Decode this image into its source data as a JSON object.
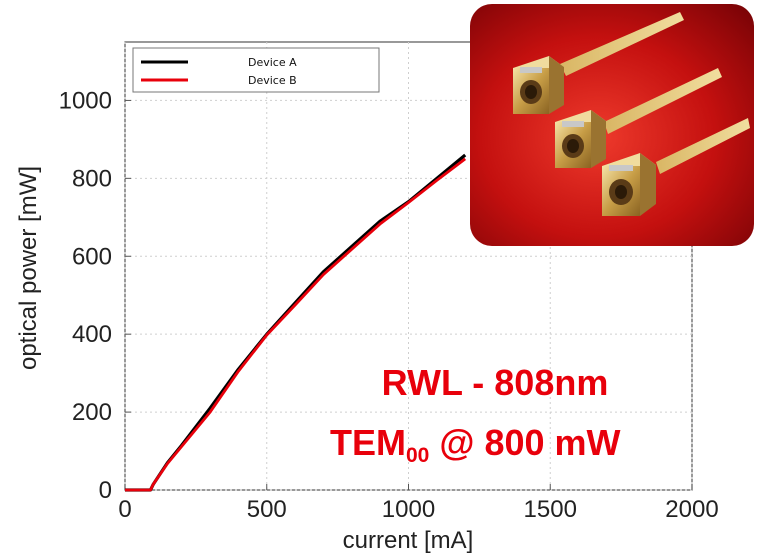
{
  "chart_data": {
    "type": "line",
    "title": "",
    "xlabel": "current [mA]",
    "ylabel": "optical power [mW]",
    "xlim": [
      0,
      2000
    ],
    "ylim": [
      0,
      1150
    ],
    "x_ticks": [
      0,
      500,
      1000,
      1500,
      2000
    ],
    "y_ticks": [
      0,
      200,
      400,
      600,
      800,
      1000
    ],
    "grid": true,
    "legend_position": "top-left",
    "series": [
      {
        "name": "Device A",
        "color": "#000000",
        "x": [
          0,
          90,
          100,
          150,
          200,
          300,
          400,
          500,
          600,
          700,
          800,
          900,
          1000,
          1100,
          1200
        ],
        "y": [
          0,
          0,
          15,
          70,
          115,
          210,
          310,
          400,
          480,
          560,
          625,
          690,
          740,
          800,
          860
        ]
      },
      {
        "name": "Device B",
        "color": "#e8000b",
        "x": [
          0,
          90,
          100,
          150,
          200,
          300,
          400,
          500,
          600,
          700,
          800,
          900,
          1000,
          1100,
          1200
        ],
        "y": [
          0,
          0,
          15,
          68,
          112,
          200,
          305,
          398,
          475,
          553,
          618,
          683,
          738,
          795,
          850
        ]
      }
    ],
    "annotations": [
      {
        "text": "RWL - 808nm"
      },
      {
        "text_main": "TEM",
        "text_sub": "00",
        "text_rest": " @ 800 mW"
      }
    ],
    "inset_image": {
      "description": "photo",
      "icon": "laser-diode-packages-photo",
      "background": "#b00a0e"
    }
  }
}
